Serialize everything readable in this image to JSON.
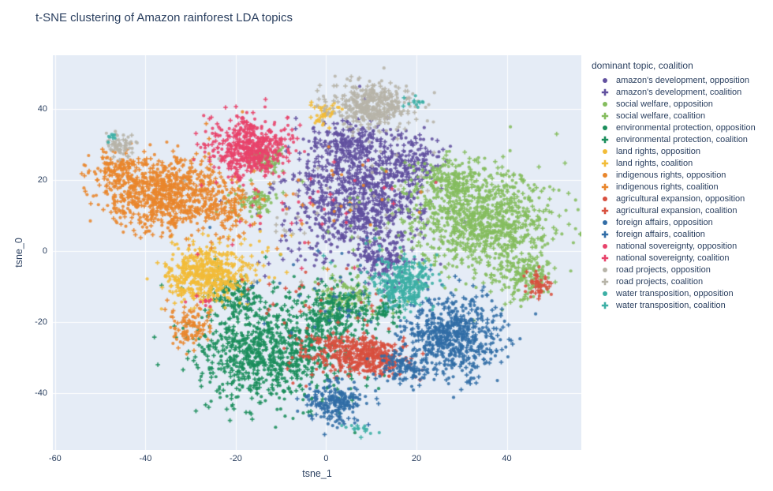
{
  "title": "t-SNE clustering of Amazon rainforest LDA topics",
  "axes": {
    "x_label": "tsne_1",
    "y_label": "tsne_0",
    "x_ticks": [
      -60,
      -40,
      -20,
      0,
      20,
      40
    ],
    "y_ticks": [
      40,
      20,
      0,
      -20,
      -40
    ]
  },
  "legend": {
    "title": "dominant topic, coalition",
    "groups": [
      "opposition",
      "coalition"
    ]
  },
  "colors": {
    "paper_bg": "#ffffff",
    "plot_bg": "#e5ecf6",
    "gridline": "#ffffff",
    "text": "#2a3f5f"
  },
  "chart_data": {
    "type": "scatter",
    "title": "t-SNE clustering of Amazon rainforest LDA topics",
    "xlabel": "tsne_1",
    "ylabel": "tsne_0",
    "xlim": [
      -60.5,
      56.5
    ],
    "ylim": [
      -56,
      55
    ],
    "grid": true,
    "legend_position": "right",
    "marker_by_group": {
      "opposition": "circle",
      "coalition": "cross"
    },
    "clusters_format": "[center_x, center_y, sigma_x, sigma_y, n_points]; each cluster mixes ~50% opposition circles and ~50% coalition crosses",
    "topics": [
      {
        "name": "amazon's development",
        "color": "#62519f",
        "clusters": [
          [
            7,
            15,
            7,
            8,
            800
          ],
          [
            5,
            30,
            4.5,
            3,
            190
          ],
          [
            18,
            25,
            4,
            3.5,
            170
          ],
          [
            13,
            -2,
            3,
            4,
            130
          ],
          [
            0,
            8,
            11,
            10,
            70
          ]
        ]
      },
      {
        "name": "social welfare",
        "color": "#85bd5e",
        "clusters": [
          [
            35,
            8,
            7.5,
            7,
            900
          ],
          [
            27,
            20,
            4,
            3,
            170
          ],
          [
            44,
            -7,
            3.5,
            3.5,
            160
          ],
          [
            -13,
            26,
            2,
            1.8,
            70
          ],
          [
            -16,
            14,
            2.5,
            2,
            75
          ],
          [
            5,
            -13,
            4,
            3,
            120
          ],
          [
            20,
            5,
            12,
            10,
            50
          ]
        ]
      },
      {
        "name": "environmental protection",
        "color": "#1b8e5c",
        "clusters": [
          [
            -12,
            -28,
            8.5,
            7.5,
            900
          ],
          [
            2,
            -17,
            4,
            3.5,
            200
          ],
          [
            13,
            -17,
            1.7,
            1.7,
            45
          ],
          [
            -20,
            -12,
            3,
            3,
            110
          ],
          [
            -5,
            -20,
            12,
            8,
            50
          ]
        ]
      },
      {
        "name": "land rights",
        "color": "#f2bc38",
        "clusters": [
          [
            -27,
            -7,
            4.3,
            4,
            480
          ],
          [
            0,
            39,
            1.7,
            1.8,
            42
          ],
          [
            -20,
            -2,
            6,
            4,
            40
          ]
        ]
      },
      {
        "name": "indigenous rights",
        "color": "#e9862c",
        "clusters": [
          [
            -36,
            16,
            6.5,
            5,
            800
          ],
          [
            -47,
            23,
            3,
            2.5,
            110
          ],
          [
            -30,
            -21,
            2.3,
            3.2,
            100
          ],
          [
            -22,
            12,
            3.5,
            4,
            120
          ],
          [
            -5,
            15,
            10,
            8,
            35
          ]
        ]
      },
      {
        "name": "agricultural expansion",
        "color": "#d8503f",
        "clusters": [
          [
            5,
            -29,
            5.5,
            2.8,
            340
          ],
          [
            12,
            -31,
            3,
            2.2,
            140
          ],
          [
            47,
            -9.5,
            1.5,
            1.8,
            50
          ],
          [
            0,
            -15,
            9,
            7,
            35
          ]
        ]
      },
      {
        "name": "foreign affairs",
        "color": "#316da6",
        "clusters": [
          [
            28,
            -24,
            5.5,
            5.5,
            620
          ],
          [
            2,
            -43,
            3.2,
            2.8,
            210
          ],
          [
            17,
            -33,
            3,
            2.5,
            110
          ],
          [
            5,
            -10,
            14,
            10,
            40
          ]
        ]
      },
      {
        "name": "national sovereignty",
        "color": "#e8436b",
        "clusters": [
          [
            -17,
            29,
            4.5,
            4.3,
            500
          ],
          [
            -27,
            -15,
            1.5,
            1.5,
            10
          ],
          [
            -5,
            15,
            10,
            9,
            45
          ]
        ]
      },
      {
        "name": "road projects",
        "color": "#b7b4a8",
        "clusters": [
          [
            10,
            41,
            5,
            3.2,
            400
          ],
          [
            -45.5,
            29.5,
            1.7,
            1.4,
            65
          ],
          [
            3,
            15,
            14,
            10,
            40
          ]
        ]
      },
      {
        "name": "water transposition",
        "color": "#3cafa5",
        "clusters": [
          [
            17,
            -9,
            3.2,
            3.5,
            280
          ],
          [
            -47,
            31.5,
            0.8,
            0.8,
            8
          ],
          [
            20,
            42,
            1.5,
            1.5,
            12
          ],
          [
            7,
            -50,
            2,
            1,
            16
          ],
          [
            10,
            -5,
            8,
            6,
            15
          ]
        ]
      }
    ]
  }
}
